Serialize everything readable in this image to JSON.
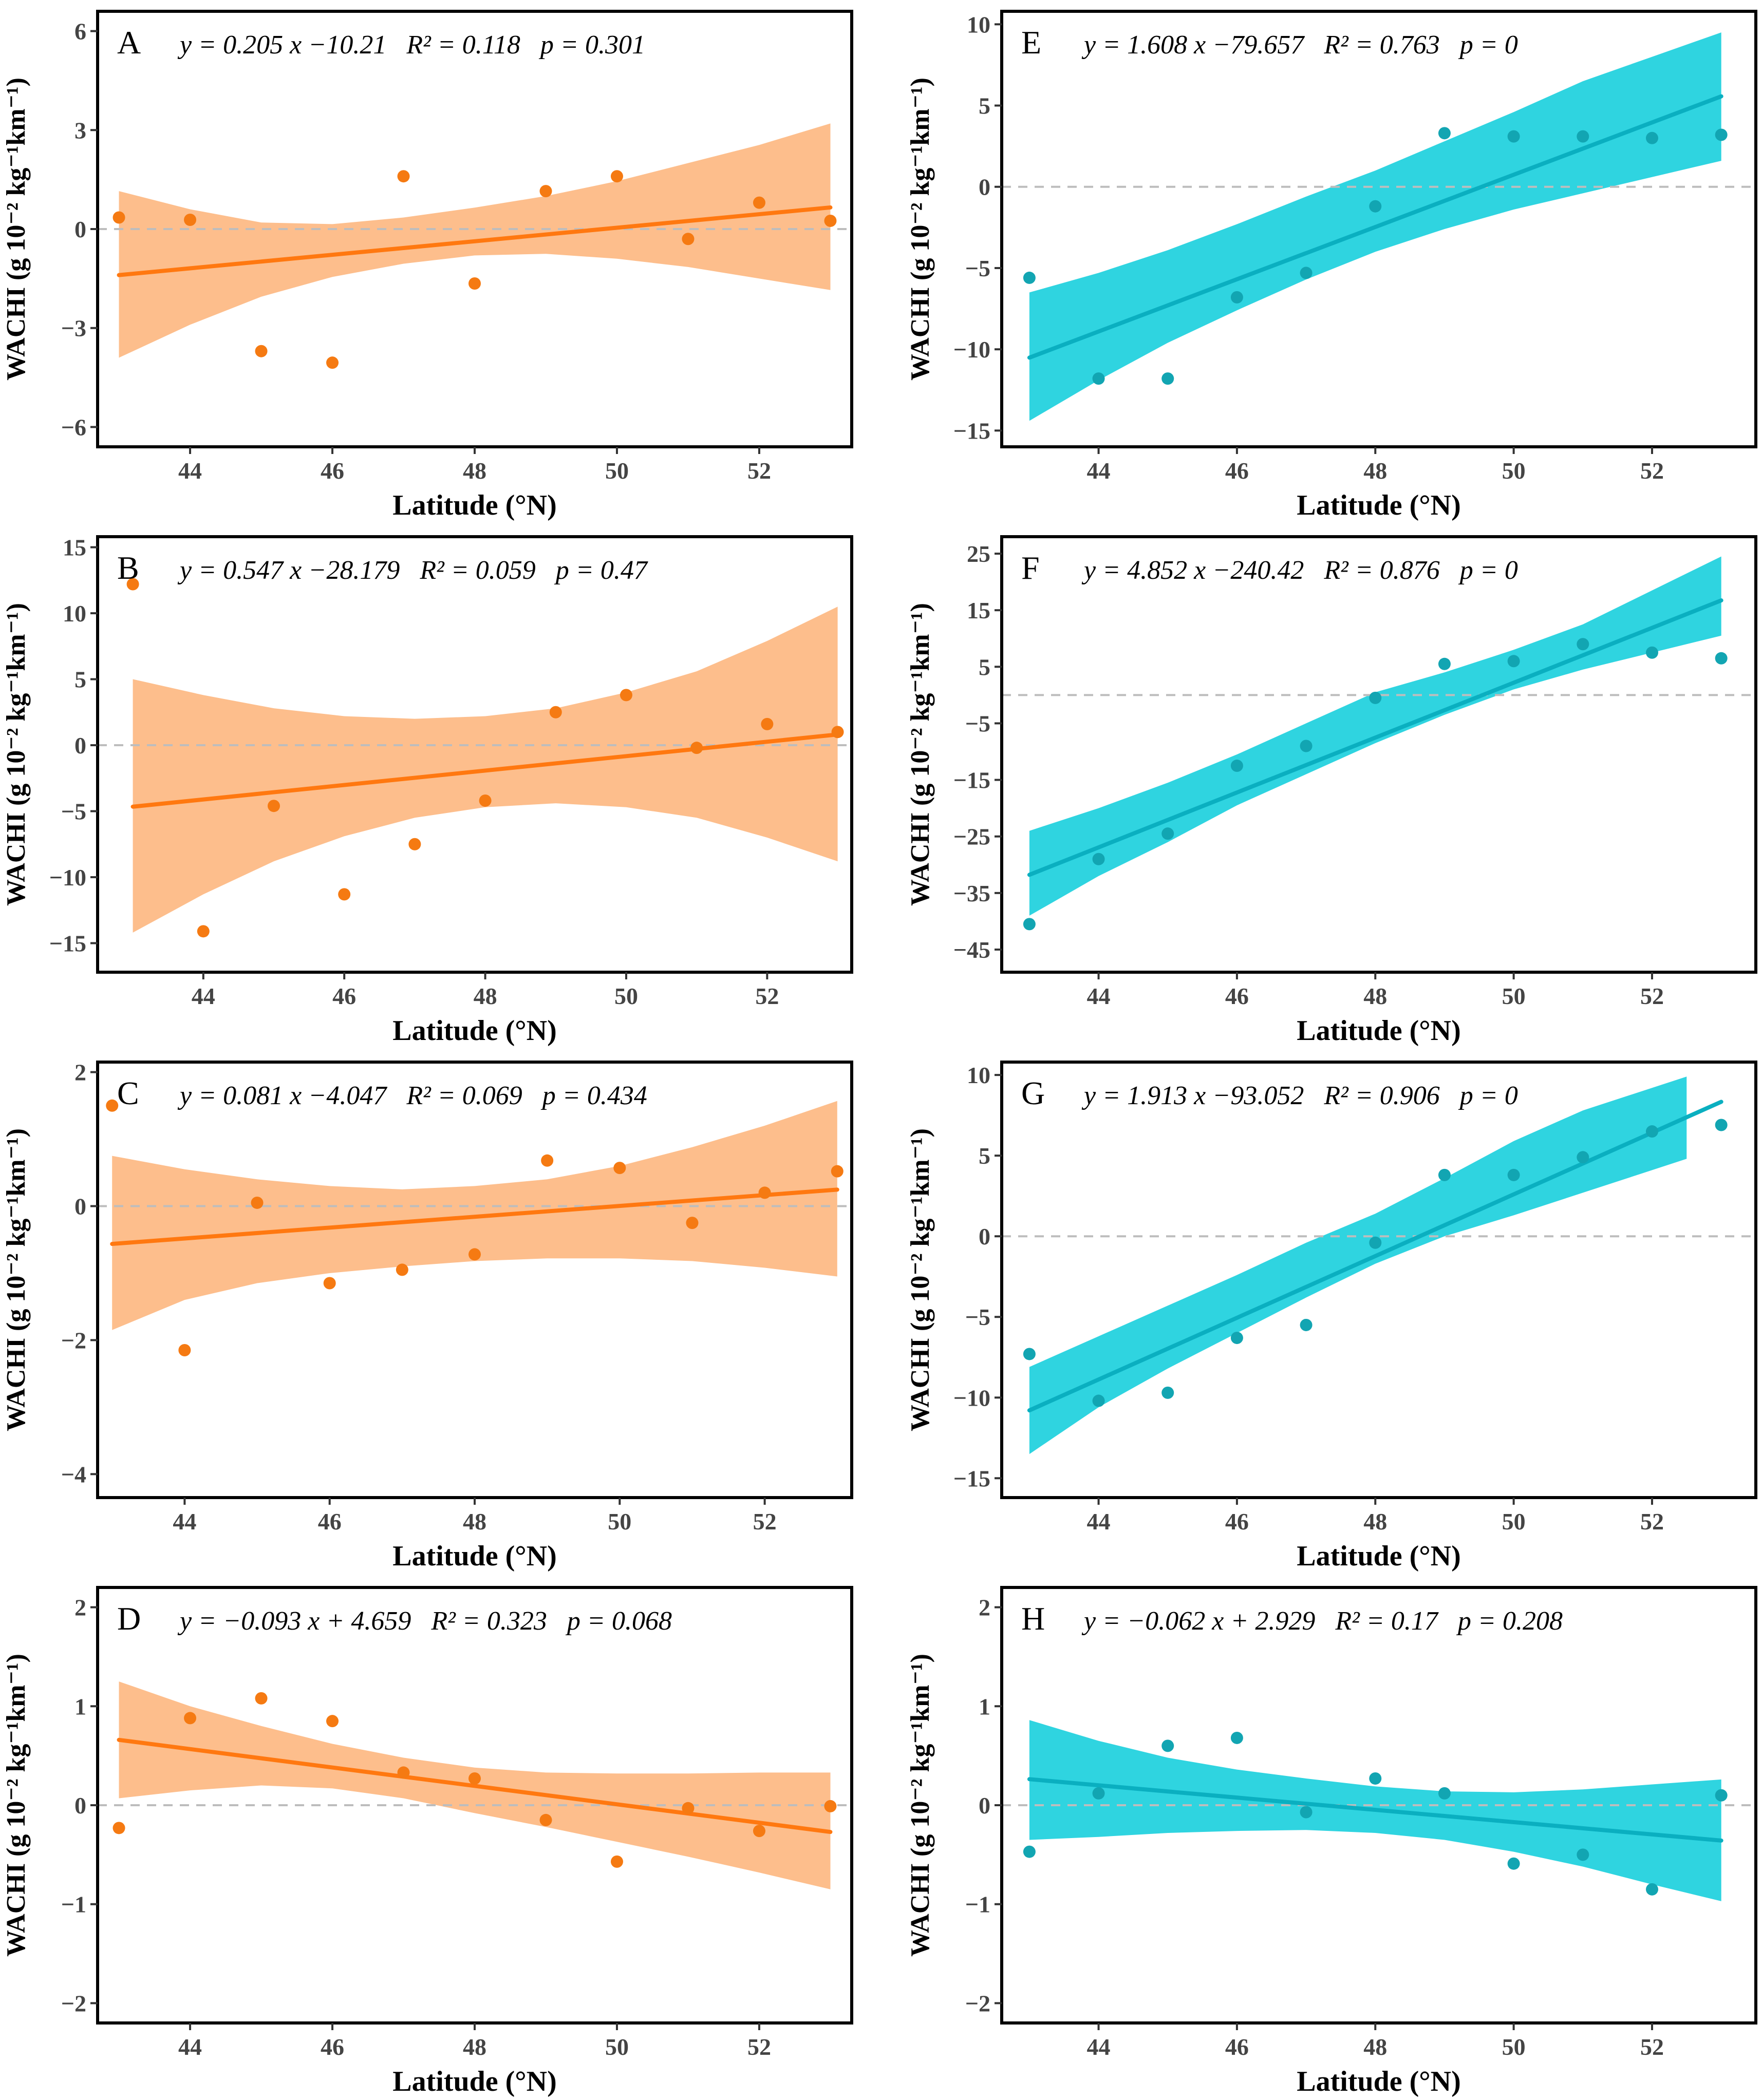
{
  "figure": {
    "xlabel": "Latitude (°N)",
    "ylabel": "WACHI (g 10⁻² kg⁻¹km⁻¹)",
    "colors": {
      "orange_line": "#FF7810",
      "orange_band": "#FDBE8C",
      "orange_point": "#F57A12",
      "cyan_line": "#0AAFC0",
      "cyan_band": "#2FD4E0",
      "cyan_point": "#12A5B2"
    }
  },
  "chart_data": [
    {
      "panel": "A",
      "type": "scatter",
      "palette": "orange",
      "equation": "y = 0.205 x −10.21   R² = 0.118   p = 0.301",
      "slope": 0.205,
      "intercept": -10.21,
      "x": [
        43,
        44,
        45,
        46,
        47,
        48,
        49,
        50,
        51,
        52,
        53
      ],
      "y": [
        0.35,
        0.28,
        -3.7,
        -4.05,
        1.6,
        -1.65,
        1.15,
        1.6,
        -0.3,
        0.8,
        0.25
      ],
      "band_lower": [
        -3.9,
        -2.9,
        -2.05,
        -1.45,
        -1.05,
        -0.8,
        -0.75,
        -0.9,
        -1.15,
        -1.5,
        -1.85
      ],
      "band_upper": [
        1.15,
        0.6,
        0.2,
        0.15,
        0.35,
        0.65,
        1.0,
        1.45,
        2.0,
        2.55,
        3.2
      ],
      "xlim": [
        42.7,
        53.3
      ],
      "ylim": [
        -6.6,
        6.6
      ],
      "xticks": [
        44,
        46,
        48,
        50,
        52
      ],
      "yticks": [
        -6,
        -3,
        0,
        3,
        6
      ],
      "yticklabels": [
        "−6",
        "−3",
        "0",
        "3",
        "6"
      ]
    },
    {
      "panel": "B",
      "type": "scatter",
      "palette": "orange",
      "equation": "y = 0.547 x −28.179   R² = 0.059   p = 0.47",
      "slope": 0.547,
      "intercept": -28.179,
      "x": [
        43,
        44,
        45,
        46,
        47,
        48,
        49,
        50,
        51,
        52,
        53
      ],
      "y": [
        12.2,
        -14.1,
        -4.6,
        -11.3,
        -7.5,
        -4.2,
        2.5,
        3.8,
        -0.2,
        1.6,
        1.0
      ],
      "band_lower": [
        -14.2,
        -11.3,
        -8.8,
        -6.9,
        -5.5,
        -4.7,
        -4.4,
        -4.7,
        -5.5,
        -7.0,
        -8.8
      ],
      "band_upper": [
        5.0,
        3.8,
        2.8,
        2.2,
        2.0,
        2.2,
        2.8,
        4.0,
        5.6,
        7.9,
        10.5
      ],
      "xlim": [
        42.5,
        53.2
      ],
      "ylim": [
        -17.2,
        15.8
      ],
      "xticks": [
        44,
        46,
        48,
        50,
        52
      ],
      "yticks": [
        -15,
        -10,
        -5,
        0,
        5,
        10,
        15
      ],
      "yticklabels": [
        "−15",
        "−10",
        "−5",
        "0",
        "5",
        "10",
        "15"
      ]
    },
    {
      "panel": "C",
      "type": "scatter",
      "palette": "orange",
      "equation": "y = 0.081 x −4.047   R² = 0.069   p = 0.434",
      "slope": 0.081,
      "intercept": -4.047,
      "x": [
        43,
        44,
        45,
        46,
        47,
        48,
        49,
        50,
        51,
        52,
        53
      ],
      "y": [
        1.5,
        -2.15,
        0.05,
        -1.15,
        -0.95,
        -0.72,
        0.68,
        0.57,
        -0.25,
        0.2,
        0.52
      ],
      "band_lower": [
        -1.85,
        -1.4,
        -1.15,
        -1.0,
        -0.9,
        -0.82,
        -0.78,
        -0.78,
        -0.82,
        -0.92,
        -1.05
      ],
      "band_upper": [
        0.75,
        0.55,
        0.4,
        0.3,
        0.25,
        0.3,
        0.4,
        0.6,
        0.88,
        1.2,
        1.57
      ],
      "xlim": [
        42.8,
        53.2
      ],
      "ylim": [
        -4.35,
        2.15
      ],
      "xticks": [
        44,
        46,
        48,
        50,
        52
      ],
      "yticks": [
        -4,
        -2,
        0,
        2
      ],
      "yticklabels": [
        "−4",
        "−2",
        "0",
        "2"
      ]
    },
    {
      "panel": "D",
      "type": "scatter",
      "palette": "orange",
      "equation": "y = −0.093 x + 4.659   R² = 0.323   p = 0.068",
      "slope": -0.093,
      "intercept": 4.659,
      "x": [
        43,
        44,
        45,
        46,
        47,
        48,
        49,
        50,
        51,
        52,
        53
      ],
      "y": [
        -0.23,
        0.88,
        1.08,
        0.85,
        0.33,
        0.27,
        -0.15,
        -0.57,
        -0.03,
        -0.26,
        -0.01
      ],
      "band_lower": [
        0.07,
        0.15,
        0.2,
        0.17,
        0.07,
        -0.08,
        -0.22,
        -0.37,
        -0.52,
        -0.68,
        -0.85
      ],
      "band_upper": [
        1.25,
        1.0,
        0.8,
        0.62,
        0.48,
        0.38,
        0.33,
        0.32,
        0.32,
        0.33,
        0.33
      ],
      "xlim": [
        42.7,
        53.3
      ],
      "ylim": [
        -2.2,
        2.2
      ],
      "xticks": [
        44,
        46,
        48,
        50,
        52
      ],
      "yticks": [
        -2,
        -1,
        0,
        1,
        2
      ],
      "yticklabels": [
        "−2",
        "−1",
        "0",
        "1",
        "2"
      ]
    },
    {
      "panel": "E",
      "type": "scatter",
      "palette": "cyan",
      "equation": "y = 1.608 x −79.657   R² = 0.763   p = 0",
      "slope": 1.608,
      "intercept": -79.657,
      "x": [
        43,
        44,
        45,
        46,
        47,
        48,
        49,
        50,
        51,
        52,
        53
      ],
      "y": [
        -5.6,
        -11.8,
        -11.8,
        -6.8,
        -5.3,
        -1.2,
        3.3,
        3.1,
        3.1,
        3.0,
        3.2
      ],
      "band_lower": [
        -14.4,
        -11.9,
        -9.6,
        -7.6,
        -5.7,
        -4.0,
        -2.6,
        -1.4,
        -0.4,
        0.6,
        1.6
      ],
      "band_upper": [
        -6.5,
        -5.3,
        -3.9,
        -2.3,
        -0.6,
        1.0,
        2.8,
        4.6,
        6.5,
        8.0,
        9.5
      ],
      "xlim": [
        42.6,
        53.5
      ],
      "ylim": [
        -16.0,
        10.8
      ],
      "xticks": [
        44,
        46,
        48,
        50,
        52
      ],
      "yticks": [
        -15,
        -10,
        -5,
        0,
        5,
        10
      ],
      "yticklabels": [
        "−15",
        "−10",
        "−5",
        "0",
        "5",
        "10"
      ]
    },
    {
      "panel": "F",
      "type": "scatter",
      "palette": "cyan",
      "equation": "y = 4.852 x −240.42   R² = 0.876   p = 0",
      "slope": 4.852,
      "intercept": -240.42,
      "x": [
        43,
        44,
        45,
        46,
        47,
        48,
        49,
        50,
        51,
        52,
        53
      ],
      "y": [
        -40.5,
        -29.0,
        -24.5,
        -12.5,
        -9.0,
        -0.5,
        5.5,
        6.0,
        9.0,
        7.5,
        6.5
      ],
      "band_lower": [
        -39.0,
        -32.0,
        -26.0,
        -19.5,
        -14.0,
        -8.5,
        -3.5,
        1.0,
        4.5,
        7.5,
        10.5
      ],
      "band_upper": [
        -24.0,
        -20.0,
        -15.5,
        -10.5,
        -5.0,
        0.5,
        4.0,
        8.0,
        12.5,
        18.5,
        24.5
      ],
      "xlim": [
        42.6,
        53.5
      ],
      "ylim": [
        -49.0,
        28.0
      ],
      "xticks": [
        44,
        46,
        48,
        50,
        52
      ],
      "yticks": [
        -45,
        -35,
        -25,
        -15,
        -5,
        5,
        15,
        25
      ],
      "yticklabels": [
        "−45",
        "−35",
        "−25",
        "−15",
        "−5",
        "5",
        "15",
        "25"
      ]
    },
    {
      "panel": "G",
      "type": "scatter",
      "palette": "cyan",
      "equation": "y = 1.913 x −93.052   R² = 0.906   p = 0",
      "slope": 1.913,
      "intercept": -93.052,
      "x": [
        43,
        44,
        45,
        46,
        47,
        48,
        49,
        50,
        51,
        52,
        53
      ],
      "y": [
        -7.3,
        -10.2,
        -9.7,
        -6.3,
        -5.5,
        -0.4,
        3.8,
        3.8,
        4.9,
        6.5,
        6.9
      ],
      "band_lower": [
        -13.5,
        -10.6,
        -8.2,
        -6.0,
        -3.8,
        -1.7,
        0.0,
        1.3,
        2.7,
        4.8
      ],
      "band_upper": [
        -8.1,
        -6.2,
        -4.3,
        -2.4,
        -0.4,
        1.4,
        3.6,
        5.9,
        7.8,
        9.9
      ],
      "band_x": [
        43,
        44,
        45,
        46,
        47,
        48,
        49,
        50,
        51,
        52.5
      ],
      "xlim": [
        42.6,
        53.5
      ],
      "ylim": [
        -16.2,
        10.8
      ],
      "xticks": [
        44,
        46,
        48,
        50,
        52
      ],
      "yticks": [
        -15,
        -10,
        -5,
        0,
        5,
        10
      ],
      "yticklabels": [
        "−15",
        "−10",
        "−5",
        "0",
        "5",
        "10"
      ]
    },
    {
      "panel": "H",
      "type": "scatter",
      "palette": "cyan",
      "equation": "y = −0.062 x + 2.929   R² = 0.17   p = 0.208",
      "slope": -0.062,
      "intercept": 2.929,
      "x": [
        43,
        44,
        45,
        46,
        47,
        48,
        49,
        50,
        51,
        52,
        53
      ],
      "y": [
        -0.47,
        0.12,
        0.6,
        0.68,
        -0.07,
        0.27,
        0.12,
        -0.59,
        -0.5,
        -0.85,
        0.1
      ],
      "band_lower": [
        -0.35,
        -0.32,
        -0.28,
        -0.26,
        -0.25,
        -0.28,
        -0.35,
        -0.47,
        -0.62,
        -0.8,
        -0.97
      ],
      "band_upper": [
        0.86,
        0.65,
        0.48,
        0.36,
        0.27,
        0.19,
        0.14,
        0.13,
        0.16,
        0.21,
        0.26
      ],
      "xlim": [
        42.6,
        53.5
      ],
      "ylim": [
        -2.2,
        2.2
      ],
      "xticks": [
        44,
        46,
        48,
        50,
        52
      ],
      "yticks": [
        -2,
        -1,
        0,
        1,
        2
      ],
      "yticklabels": [
        "−2",
        "−1",
        "0",
        "1",
        "2"
      ]
    }
  ]
}
